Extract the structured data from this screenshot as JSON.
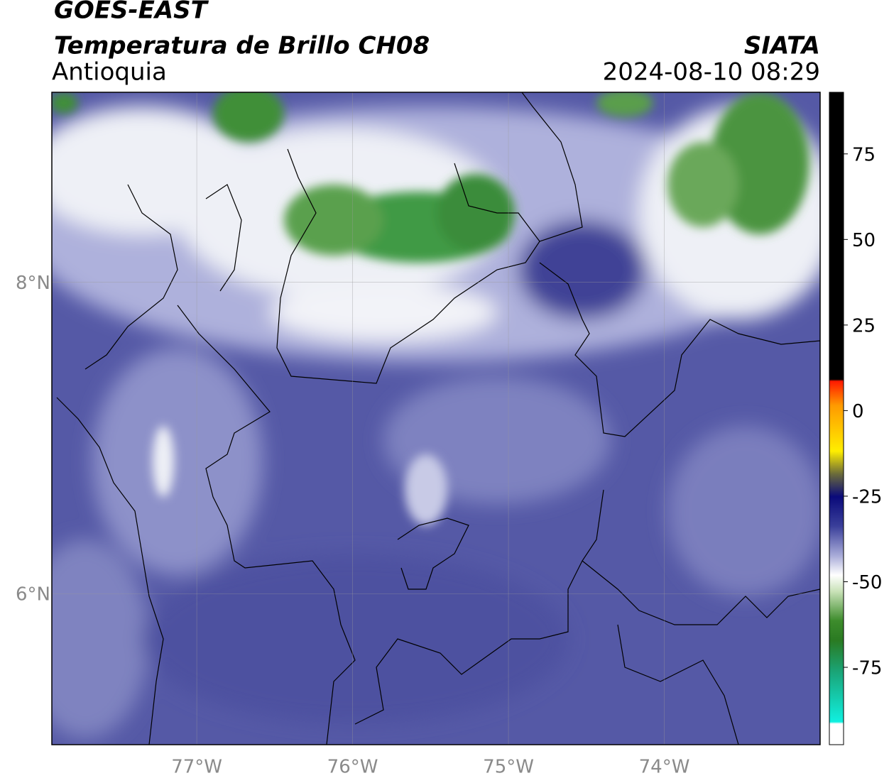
{
  "header": {
    "satellite": "GOES-EAST",
    "title": "Temperatura de Brillo CH08",
    "region": "Antioquia",
    "source": "SIATA",
    "datetime": "2024-08-10 08:29"
  },
  "map": {
    "xlim": [
      -77.93,
      -73.0
    ],
    "ylim": [
      5.03,
      9.22
    ],
    "xticks": [
      {
        "value": -77,
        "label": "77°W"
      },
      {
        "value": -76,
        "label": "76°W"
      },
      {
        "value": -75,
        "label": "75°W"
      },
      {
        "value": -74,
        "label": "74°W"
      }
    ],
    "yticks": [
      {
        "value": 6,
        "label": "6°N"
      },
      {
        "value": 8,
        "label": "8°N"
      }
    ]
  },
  "colorbar": {
    "clim": [
      -97.6,
      93
    ],
    "ticks": [
      -75,
      -50,
      -25,
      0,
      25,
      50,
      75
    ]
  }
}
